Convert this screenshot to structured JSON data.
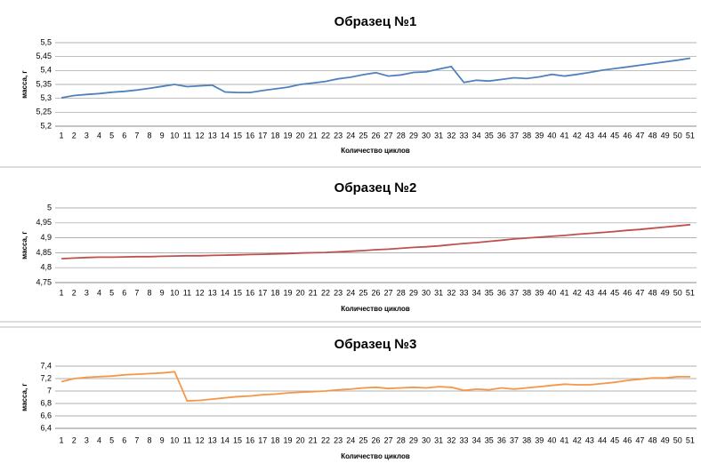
{
  "chart_data": [
    {
      "type": "line",
      "title": "Образец №1",
      "x_label": "Количество циклов",
      "y_label": "масса, г",
      "categories": [
        "1",
        "2",
        "3",
        "4",
        "5",
        "6",
        "7",
        "8",
        "9",
        "10",
        "11",
        "12",
        "13",
        "14",
        "15",
        "16",
        "17",
        "18",
        "19",
        "20",
        "21",
        "22",
        "23",
        "24",
        "25",
        "26",
        "27",
        "28",
        "29",
        "30",
        "31",
        "32",
        "33",
        "34",
        "35",
        "36",
        "37",
        "38",
        "39",
        "40",
        "41",
        "42",
        "43",
        "44",
        "45",
        "46",
        "47",
        "48",
        "49",
        "50",
        "51"
      ],
      "series": [
        {
          "name": "Образец №1",
          "color": "#4f81bd",
          "values": [
            5.302,
            5.31,
            5.314,
            5.317,
            5.322,
            5.325,
            5.33,
            5.336,
            5.343,
            5.35,
            5.342,
            5.345,
            5.347,
            5.323,
            5.321,
            5.321,
            5.328,
            5.334,
            5.34,
            5.35,
            5.355,
            5.361,
            5.37,
            5.376,
            5.385,
            5.392,
            5.38,
            5.384,
            5.393,
            5.395,
            5.405,
            5.414,
            5.357,
            5.365,
            5.362,
            5.368,
            5.374,
            5.371,
            5.377,
            5.386,
            5.38,
            5.386,
            5.393,
            5.401,
            5.407,
            5.413,
            5.419,
            5.425,
            5.431,
            5.437,
            5.444
          ]
        }
      ],
      "ylim": [
        5.2,
        5.5
      ],
      "yticks": [
        {
          "value": 5.2,
          "label": "5,2"
        },
        {
          "value": 5.25,
          "label": "5,25"
        },
        {
          "value": 5.3,
          "label": "5,3"
        },
        {
          "value": 5.35,
          "label": "5,35"
        },
        {
          "value": 5.4,
          "label": "5,4"
        },
        {
          "value": 5.45,
          "label": "5,45"
        },
        {
          "value": 5.5,
          "label": "5,5"
        }
      ],
      "grid": true
    },
    {
      "type": "line",
      "title": "Образец №2",
      "x_label": "Количество циклов",
      "y_label": "масса, г",
      "categories": [
        "1",
        "2",
        "3",
        "4",
        "5",
        "6",
        "7",
        "8",
        "9",
        "10",
        "11",
        "12",
        "13",
        "14",
        "15",
        "16",
        "17",
        "18",
        "19",
        "20",
        "21",
        "22",
        "23",
        "24",
        "25",
        "26",
        "27",
        "28",
        "29",
        "30",
        "31",
        "32",
        "33",
        "34",
        "35",
        "36",
        "37",
        "38",
        "39",
        "40",
        "41",
        "42",
        "43",
        "44",
        "45",
        "46",
        "47",
        "48",
        "49",
        "50",
        "51"
      ],
      "series": [
        {
          "name": "Образец №2",
          "color": "#c0504d",
          "values": [
            4.83,
            4.832,
            4.834,
            4.835,
            4.835,
            4.836,
            4.837,
            4.837,
            4.838,
            4.839,
            4.84,
            4.84,
            4.841,
            4.842,
            4.843,
            4.844,
            4.845,
            4.846,
            4.847,
            4.849,
            4.85,
            4.851,
            4.853,
            4.855,
            4.857,
            4.86,
            4.862,
            4.865,
            4.868,
            4.87,
            4.873,
            4.877,
            4.881,
            4.884,
            4.888,
            4.892,
            4.896,
            4.899,
            4.902,
            4.905,
            4.908,
            4.912,
            4.915,
            4.918,
            4.921,
            4.925,
            4.928,
            4.932,
            4.936,
            4.94,
            4.944
          ]
        }
      ],
      "ylim": [
        4.75,
        5
      ],
      "yticks": [
        {
          "value": 4.75,
          "label": "4,75"
        },
        {
          "value": 4.8,
          "label": "4,8"
        },
        {
          "value": 4.85,
          "label": "4,85"
        },
        {
          "value": 4.9,
          "label": "4,9"
        },
        {
          "value": 4.95,
          "label": "4,95"
        },
        5
      ],
      "grid": true
    },
    {
      "type": "line",
      "title": "Образец №3",
      "x_label": "Количество циклов",
      "y_label": "масса, г",
      "categories": [
        "1",
        "2",
        "3",
        "4",
        "5",
        "6",
        "7",
        "8",
        "9",
        "10",
        "11",
        "12",
        "13",
        "14",
        "15",
        "16",
        "17",
        "18",
        "19",
        "20",
        "21",
        "22",
        "23",
        "24",
        "25",
        "26",
        "27",
        "28",
        "29",
        "30",
        "31",
        "32",
        "33",
        "34",
        "35",
        "36",
        "37",
        "38",
        "39",
        "40",
        "41",
        "42",
        "43",
        "44",
        "45",
        "46",
        "47",
        "48",
        "49",
        "50",
        "51"
      ],
      "series": [
        {
          "name": "Образец №3",
          "color": "#f79646",
          "values": [
            7.15,
            7.2,
            7.22,
            7.23,
            7.24,
            7.26,
            7.27,
            7.28,
            7.29,
            7.31,
            6.84,
            6.85,
            6.87,
            6.89,
            6.91,
            6.92,
            6.94,
            6.95,
            6.97,
            6.98,
            6.99,
            7.0,
            7.02,
            7.03,
            7.05,
            7.06,
            7.04,
            7.05,
            7.06,
            7.05,
            7.07,
            7.06,
            7.01,
            7.03,
            7.02,
            7.05,
            7.03,
            7.05,
            7.07,
            7.09,
            7.11,
            7.1,
            7.1,
            7.12,
            7.14,
            7.17,
            7.19,
            7.21,
            7.21,
            7.23,
            7.23
          ]
        }
      ],
      "ylim": [
        6.4,
        7.4
      ],
      "yticks": [
        {
          "value": 6.4,
          "label": "6,4"
        },
        {
          "value": 6.6,
          "label": "6,6"
        },
        {
          "value": 6.8,
          "label": "6,8"
        },
        7,
        {
          "value": 7.2,
          "label": "7,2"
        },
        {
          "value": 7.4,
          "label": "7,4"
        }
      ],
      "grid": true
    }
  ]
}
